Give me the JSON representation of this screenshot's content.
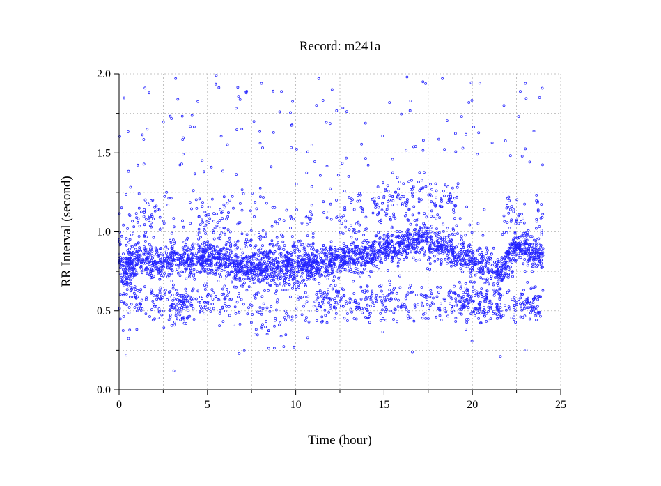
{
  "chart_data": {
    "type": "scatter",
    "title": "Record:  m241a",
    "xlabel": "Time (hour)",
    "ylabel": "RR Interval (second)",
    "xlim": [
      0,
      25
    ],
    "ylim": [
      0.0,
      2.0
    ],
    "x_ticks": [
      "0",
      "5",
      "10",
      "15",
      "20",
      "25"
    ],
    "y_ticks": [
      "0.0",
      "0.5",
      "1.0",
      "1.5",
      "2.0"
    ],
    "grid": true,
    "marker": "open-circle",
    "point_color": "#2323ff",
    "series": [
      {
        "baseline_profile": {
          "x": [
            0,
            0.3,
            0.6,
            1,
            2,
            3,
            4,
            5,
            6,
            6.5,
            7,
            8,
            9,
            10,
            11,
            12,
            13,
            14,
            14.5,
            15,
            16,
            17,
            18,
            19,
            20,
            21,
            21.5,
            22,
            22.5,
            23,
            23.5,
            24
          ],
          "y": [
            0.85,
            0.72,
            0.78,
            0.82,
            0.8,
            0.83,
            0.82,
            0.84,
            0.83,
            0.8,
            0.78,
            0.79,
            0.78,
            0.79,
            0.8,
            0.82,
            0.84,
            0.85,
            0.86,
            0.9,
            0.92,
            0.95,
            0.92,
            0.88,
            0.82,
            0.78,
            0.72,
            0.82,
            0.9,
            0.92,
            0.86,
            0.85
          ]
        },
        "sample_points": [
          {
            "x": 0.4,
            "y": 0.22
          },
          {
            "x": 3.1,
            "y": 0.12
          },
          {
            "x": 16.6,
            "y": 0.24
          },
          {
            "x": 5.5,
            "y": 1.99
          },
          {
            "x": 3.2,
            "y": 1.97
          },
          {
            "x": 16.3,
            "y": 1.98
          },
          {
            "x": 18.3,
            "y": 1.97
          },
          {
            "x": 23.0,
            "y": 1.94
          },
          {
            "x": 1.7,
            "y": 1.88
          },
          {
            "x": 7.2,
            "y": 1.88
          },
          {
            "x": 11.3,
            "y": 1.97
          },
          {
            "x": 6.8,
            "y": 0.23
          },
          {
            "x": 9.9,
            "y": 0.27
          },
          {
            "x": 17.2,
            "y": 1.95
          },
          {
            "x": 23.8,
            "y": 1.85
          }
        ]
      }
    ]
  }
}
